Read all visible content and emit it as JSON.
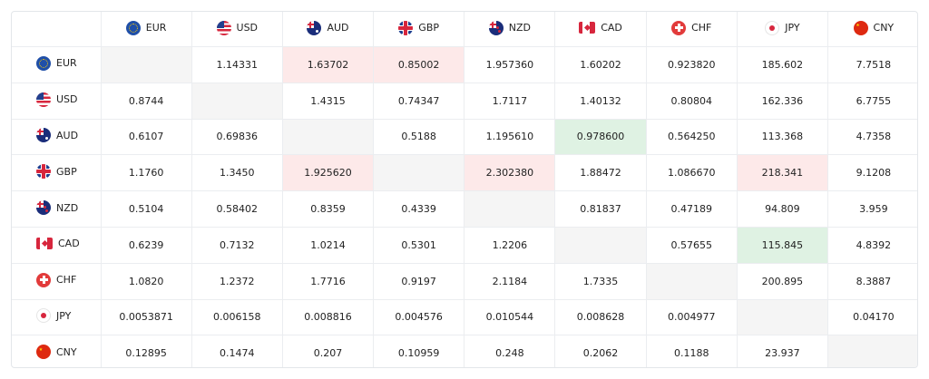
{
  "currencies": [
    {
      "code": "EUR",
      "flag_icon": "eu-flag-icon"
    },
    {
      "code": "USD",
      "flag_icon": "us-flag-icon"
    },
    {
      "code": "AUD",
      "flag_icon": "au-flag-icon"
    },
    {
      "code": "GBP",
      "flag_icon": "gb-flag-icon"
    },
    {
      "code": "NZD",
      "flag_icon": "nz-flag-icon"
    },
    {
      "code": "CAD",
      "flag_icon": "ca-flag-icon"
    },
    {
      "code": "CHF",
      "flag_icon": "ch-flag-icon"
    },
    {
      "code": "JPY",
      "flag_icon": "jp-flag-icon"
    },
    {
      "code": "CNY",
      "flag_icon": "cn-flag-icon"
    }
  ],
  "colors": {
    "highlight_red": "#fde9e9",
    "highlight_green": "#dff2e3",
    "diagonal": "#f5f5f5",
    "border": "#ebedf0"
  },
  "rows": [
    {
      "code": "EUR",
      "cells": [
        {
          "value": "",
          "highlight": "diagonal"
        },
        {
          "value": "1.14331",
          "highlight": ""
        },
        {
          "value": "1.63702",
          "highlight": "red"
        },
        {
          "value": "0.85002",
          "highlight": "red"
        },
        {
          "value": "1.957360",
          "highlight": ""
        },
        {
          "value": "1.60202",
          "highlight": ""
        },
        {
          "value": "0.923820",
          "highlight": ""
        },
        {
          "value": "185.602",
          "highlight": ""
        },
        {
          "value": "7.7518",
          "highlight": ""
        }
      ]
    },
    {
      "code": "USD",
      "cells": [
        {
          "value": "0.8744",
          "highlight": ""
        },
        {
          "value": "",
          "highlight": "diagonal"
        },
        {
          "value": "1.4315",
          "highlight": ""
        },
        {
          "value": "0.74347",
          "highlight": ""
        },
        {
          "value": "1.7117",
          "highlight": ""
        },
        {
          "value": "1.40132",
          "highlight": ""
        },
        {
          "value": "0.80804",
          "highlight": ""
        },
        {
          "value": "162.336",
          "highlight": ""
        },
        {
          "value": "6.7755",
          "highlight": ""
        }
      ]
    },
    {
      "code": "AUD",
      "cells": [
        {
          "value": "0.6107",
          "highlight": ""
        },
        {
          "value": "0.69836",
          "highlight": ""
        },
        {
          "value": "",
          "highlight": "diagonal"
        },
        {
          "value": "0.5188",
          "highlight": ""
        },
        {
          "value": "1.195610",
          "highlight": ""
        },
        {
          "value": "0.978600",
          "highlight": "green"
        },
        {
          "value": "0.564250",
          "highlight": ""
        },
        {
          "value": "113.368",
          "highlight": ""
        },
        {
          "value": "4.7358",
          "highlight": ""
        }
      ]
    },
    {
      "code": "GBP",
      "cells": [
        {
          "value": "1.1760",
          "highlight": ""
        },
        {
          "value": "1.3450",
          "highlight": ""
        },
        {
          "value": "1.925620",
          "highlight": "red"
        },
        {
          "value": "",
          "highlight": "diagonal"
        },
        {
          "value": "2.302380",
          "highlight": "red"
        },
        {
          "value": "1.88472",
          "highlight": ""
        },
        {
          "value": "1.086670",
          "highlight": ""
        },
        {
          "value": "218.341",
          "highlight": "red"
        },
        {
          "value": "9.1208",
          "highlight": ""
        }
      ]
    },
    {
      "code": "NZD",
      "cells": [
        {
          "value": "0.5104",
          "highlight": ""
        },
        {
          "value": "0.58402",
          "highlight": ""
        },
        {
          "value": "0.8359",
          "highlight": ""
        },
        {
          "value": "0.4339",
          "highlight": ""
        },
        {
          "value": "",
          "highlight": "diagonal"
        },
        {
          "value": "0.81837",
          "highlight": ""
        },
        {
          "value": "0.47189",
          "highlight": ""
        },
        {
          "value": "94.809",
          "highlight": ""
        },
        {
          "value": "3.959",
          "highlight": ""
        }
      ]
    },
    {
      "code": "CAD",
      "cells": [
        {
          "value": "0.6239",
          "highlight": ""
        },
        {
          "value": "0.7132",
          "highlight": ""
        },
        {
          "value": "1.0214",
          "highlight": ""
        },
        {
          "value": "0.5301",
          "highlight": ""
        },
        {
          "value": "1.2206",
          "highlight": ""
        },
        {
          "value": "",
          "highlight": "diagonal"
        },
        {
          "value": "0.57655",
          "highlight": ""
        },
        {
          "value": "115.845",
          "highlight": "green"
        },
        {
          "value": "4.8392",
          "highlight": ""
        }
      ]
    },
    {
      "code": "CHF",
      "cells": [
        {
          "value": "1.0820",
          "highlight": ""
        },
        {
          "value": "1.2372",
          "highlight": ""
        },
        {
          "value": "1.7716",
          "highlight": ""
        },
        {
          "value": "0.9197",
          "highlight": ""
        },
        {
          "value": "2.1184",
          "highlight": ""
        },
        {
          "value": "1.7335",
          "highlight": ""
        },
        {
          "value": "",
          "highlight": "diagonal"
        },
        {
          "value": "200.895",
          "highlight": ""
        },
        {
          "value": "8.3887",
          "highlight": ""
        }
      ]
    },
    {
      "code": "JPY",
      "cells": [
        {
          "value": "0.0053871",
          "highlight": ""
        },
        {
          "value": "0.006158",
          "highlight": ""
        },
        {
          "value": "0.008816",
          "highlight": ""
        },
        {
          "value": "0.004576",
          "highlight": ""
        },
        {
          "value": "0.010544",
          "highlight": ""
        },
        {
          "value": "0.008628",
          "highlight": ""
        },
        {
          "value": "0.004977",
          "highlight": ""
        },
        {
          "value": "",
          "highlight": "diagonal"
        },
        {
          "value": "0.04170",
          "highlight": ""
        }
      ]
    },
    {
      "code": "CNY",
      "cells": [
        {
          "value": "0.12895",
          "highlight": ""
        },
        {
          "value": "0.1474",
          "highlight": ""
        },
        {
          "value": "0.207",
          "highlight": ""
        },
        {
          "value": "0.10959",
          "highlight": ""
        },
        {
          "value": "0.248",
          "highlight": ""
        },
        {
          "value": "0.2062",
          "highlight": ""
        },
        {
          "value": "0.1188",
          "highlight": ""
        },
        {
          "value": "23.937",
          "highlight": ""
        },
        {
          "value": "",
          "highlight": "diagonal"
        }
      ]
    }
  ]
}
